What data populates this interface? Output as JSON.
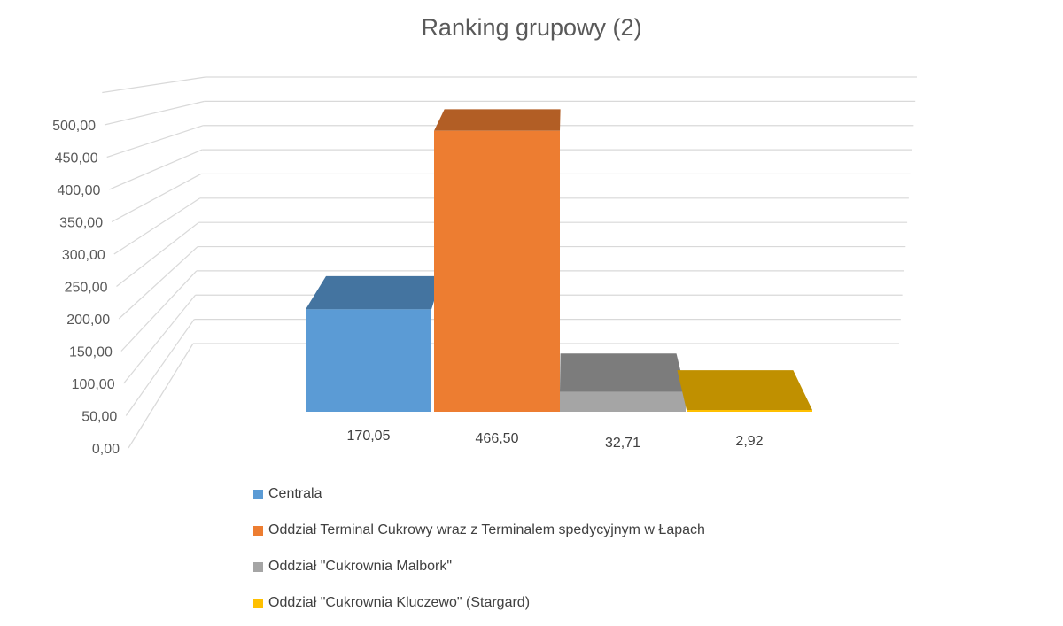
{
  "chart_data": {
    "type": "bar",
    "title": "Ranking grupowy (2)",
    "style": "3d-column",
    "ylim": [
      0,
      550
    ],
    "yticks": [
      "0,00",
      "50,00",
      "100,00",
      "150,00",
      "200,00",
      "250,00",
      "300,00",
      "350,00",
      "400,00",
      "450,00",
      "500,00"
    ],
    "grid": true,
    "legend_position": "bottom",
    "series": [
      {
        "name": "Centrala",
        "value": 170.05,
        "label": "170,05",
        "color": "#5B9BD5"
      },
      {
        "name": "Oddział Terminal Cukrowy wraz z Terminalem spedycyjnym w Łapach",
        "value": 466.5,
        "label": "466,50",
        "color": "#ED7D31"
      },
      {
        "name": "Oddział \"Cukrownia Malbork\"",
        "value": 32.71,
        "label": "32,71",
        "color": "#A5A5A5"
      },
      {
        "name": "Oddział \"Cukrownia Kluczewo\" (Stargard)",
        "value": 2.92,
        "label": "2,92",
        "color": "#FFC000"
      }
    ]
  }
}
